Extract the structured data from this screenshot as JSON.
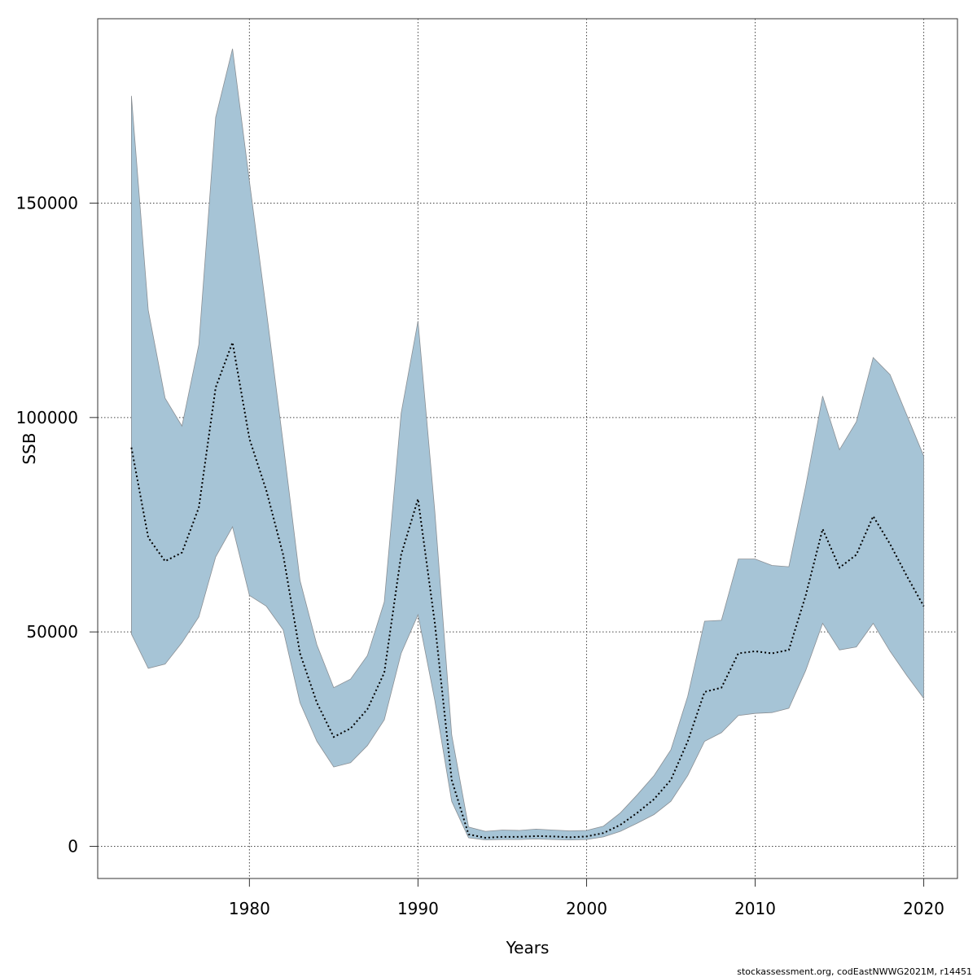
{
  "chart_data": {
    "type": "area",
    "title": "",
    "xlabel": "Years",
    "ylabel": "SSB",
    "xlim": [
      1971,
      2022
    ],
    "ylim": [
      -7500,
      193000
    ],
    "grid": true,
    "x_ticks": [
      1980,
      1990,
      2000,
      2010,
      2020
    ],
    "y_ticks": [
      0,
      50000,
      100000,
      150000
    ],
    "x_tick_labels": [
      "1980",
      "1990",
      "2000",
      "2010",
      "2020"
    ],
    "y_tick_labels": [
      "0",
      "50000",
      "100000",
      "150000"
    ],
    "colors": {
      "band": "#a6c4d6",
      "band_edge": "#8a8f94",
      "line": "#000000"
    },
    "years": [
      1973,
      1974,
      1975,
      1976,
      1977,
      1978,
      1979,
      1980,
      1981,
      1982,
      1983,
      1984,
      1985,
      1986,
      1987,
      1988,
      1989,
      1990,
      1991,
      1992,
      1993,
      1994,
      1995,
      1996,
      1997,
      1998,
      1999,
      2000,
      2001,
      2002,
      2003,
      2004,
      2005,
      2006,
      2007,
      2008,
      2009,
      2010,
      2011,
      2012,
      2013,
      2014,
      2015,
      2016,
      2017,
      2018,
      2019,
      2020
    ],
    "series": [
      {
        "role": "upper",
        "values": [
          175000,
          125000,
          104500,
          98000,
          117000,
          170000,
          186000,
          155000,
          125000,
          94000,
          62000,
          47000,
          37000,
          39000,
          44500,
          57000,
          101000,
          122500,
          78000,
          26000,
          4500,
          3500,
          3800,
          3700,
          4000,
          3800,
          3600,
          3700,
          4700,
          7800,
          12000,
          16500,
          22500,
          35000,
          52500,
          52700,
          67000,
          67000,
          65500,
          65200,
          84000,
          105000,
          92500,
          99000,
          114000,
          110000,
          100500,
          91000
        ]
      },
      {
        "role": "estimate",
        "values": [
          93000,
          72000,
          66500,
          68500,
          79000,
          107000,
          117500,
          95000,
          83000,
          68000,
          45000,
          33500,
          25500,
          27500,
          32000,
          40500,
          68000,
          81000,
          52000,
          15500,
          2800,
          2000,
          2200,
          2200,
          2400,
          2300,
          2100,
          2300,
          3100,
          5000,
          7800,
          11000,
          15500,
          24500,
          36000,
          37000,
          45000,
          45500,
          45000,
          45800,
          58500,
          74000,
          65000,
          68000,
          77000,
          70500,
          63000,
          56000
        ]
      },
      {
        "role": "lower",
        "values": [
          49500,
          41500,
          42500,
          47500,
          53500,
          67500,
          74500,
          58500,
          56000,
          50500,
          33500,
          24500,
          18500,
          19500,
          23500,
          29500,
          45000,
          54000,
          34000,
          10500,
          2000,
          1500,
          1600,
          1600,
          1700,
          1600,
          1500,
          1600,
          2200,
          3500,
          5400,
          7400,
          10500,
          16500,
          24500,
          26500,
          30500,
          31000,
          31200,
          32200,
          41000,
          52000,
          45800,
          46500,
          52000,
          45500,
          39800,
          34500
        ]
      }
    ]
  },
  "footer": {
    "credit": "stockassessment.org, codEastNWWG2021M, r14451"
  }
}
